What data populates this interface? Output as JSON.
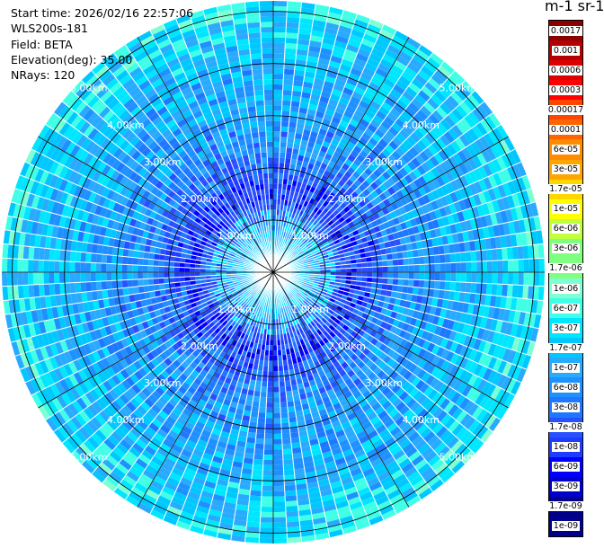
{
  "header": {
    "start_time": "Start time: 2026/02/16 22:57:06",
    "instrument": "WLS200s-181",
    "field": "Field: BETA",
    "elevation": "Elevation(deg): 35.00",
    "nrays": "NRays: 120"
  },
  "colorbar": {
    "title": "m-1 sr-1",
    "colors": [
      "#00008b",
      "#0000cd",
      "#0000ff",
      "#1e3cff",
      "#2850ff",
      "#1e78ff",
      "#1e90ff",
      "#28aaff",
      "#00c8ff",
      "#00e6ff",
      "#40ffe6",
      "#7fffd4",
      "#7fff7f",
      "#c0ff3c",
      "#ffff00",
      "#ffd700",
      "#ffa500",
      "#ff8c00",
      "#ff6400",
      "#ff4500",
      "#ff0000",
      "#dc0000",
      "#b40000",
      "#8b0000"
    ],
    "labels": [
      "1e-09",
      "1.7e-09",
      "3e-09",
      "6e-09",
      "1e-08",
      "1.7e-08",
      "3e-08",
      "6e-08",
      "1e-07",
      "1.7e-07",
      "3e-07",
      "6e-07",
      "1e-06",
      "1.7e-06",
      "3e-06",
      "6e-06",
      "1e-05",
      "1.7e-05",
      "3e-05",
      "6e-05",
      "0.0001",
      "0.00017",
      "0.0003",
      "0.0006",
      "0.001",
      "0.0017"
    ]
  },
  "chart_data": {
    "type": "heatmap",
    "projection": "polar PPI",
    "field": "BETA",
    "elevation_deg": 35.0,
    "n_rays": 120,
    "range_max_km": 5.2,
    "range_rings": [
      {
        "range_km": 1.0,
        "label": "1.00km"
      },
      {
        "range_km": 2.0,
        "label": "2.00km"
      },
      {
        "range_km": 3.0,
        "label": "3.00km"
      },
      {
        "range_km": 4.0,
        "label": "4.00km"
      },
      {
        "range_km": 5.0,
        "label": "5.00km"
      }
    ],
    "radial_profile_colors": [
      {
        "range_km": 0.5,
        "level": "1.7e-07"
      },
      {
        "range_km": 1.5,
        "level": "1e-08"
      },
      {
        "range_km": 2.5,
        "level": "6e-08"
      },
      {
        "range_km": 3.5,
        "level": "1e-07"
      },
      {
        "range_km": 4.5,
        "level": "1.7e-07"
      },
      {
        "range_km": 5.0,
        "level": "3e-07"
      }
    ],
    "scale": "log",
    "vmin": "1e-09",
    "vmax": "0.0017"
  }
}
